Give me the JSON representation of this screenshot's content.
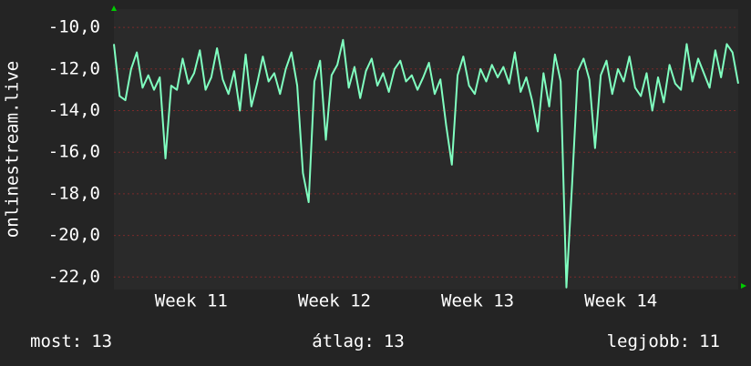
{
  "chart_data": {
    "type": "line",
    "y_label": "onlinestream.live",
    "x": [
      10.96,
      11,
      11.04,
      11.08,
      11.12,
      11.16,
      11.2,
      11.24,
      11.28,
      11.32,
      11.36,
      11.4,
      11.44,
      11.48,
      11.52,
      11.56,
      11.6,
      11.64,
      11.68,
      11.72,
      11.76,
      11.8,
      11.84,
      11.88,
      11.92,
      11.96,
      12,
      12.04,
      12.08,
      12.12,
      12.16,
      12.2,
      12.24,
      12.28,
      12.32,
      12.36,
      12.4,
      12.44,
      12.48,
      12.52,
      12.56,
      12.6,
      12.64,
      12.68,
      12.72,
      12.76,
      12.8,
      12.84,
      12.88,
      12.92,
      12.96,
      13,
      13.04,
      13.08,
      13.12,
      13.16,
      13.2,
      13.24,
      13.28,
      13.32,
      13.36,
      13.4,
      13.44,
      13.48,
      13.52,
      13.56,
      13.6,
      13.64,
      13.68,
      13.72,
      13.76,
      13.8,
      13.84,
      13.88,
      13.92,
      13.96,
      14,
      14.04,
      14.08,
      14.12,
      14.16,
      14.2,
      14.24,
      14.28,
      14.32,
      14.36,
      14.4,
      14.44,
      14.48,
      14.52,
      14.56,
      14.6,
      14.64,
      14.68,
      14.72,
      14.76,
      14.8,
      14.84,
      14.88,
      14.92,
      14.96,
      15,
      15.04,
      15.08,
      15.12,
      15.16,
      15.2,
      15.24,
      15.28,
      15.32
    ],
    "series": [
      {
        "color": "#80ffc0",
        "values": [
          -10.8,
          -13.3,
          -13.5,
          -12.0,
          -11.2,
          -12.9,
          -12.3,
          -13.0,
          -12.4,
          -16.3,
          -12.8,
          -13.0,
          -11.5,
          -12.7,
          -12.2,
          -11.1,
          -13.0,
          -12.4,
          -11.0,
          -12.5,
          -13.2,
          -12.1,
          -14.0,
          -11.3,
          -13.8,
          -12.7,
          -11.4,
          -12.6,
          -12.2,
          -13.2,
          -12.0,
          -11.2,
          -12.8,
          -17.0,
          -18.4,
          -12.6,
          -11.6,
          -15.4,
          -12.3,
          -11.8,
          -10.6,
          -12.9,
          -11.9,
          -13.4,
          -12.1,
          -11.5,
          -12.8,
          -12.2,
          -13.1,
          -12.0,
          -11.6,
          -12.6,
          -12.3,
          -13.0,
          -12.4,
          -11.7,
          -13.2,
          -12.5,
          -14.7,
          -16.6,
          -12.3,
          -11.4,
          -12.8,
          -13.2,
          -12.0,
          -12.6,
          -11.8,
          -12.4,
          -11.9,
          -12.7,
          -11.2,
          -13.1,
          -12.4,
          -13.5,
          -15.0,
          -12.2,
          -13.8,
          -11.3,
          -12.6,
          -22.5,
          -17.5,
          -12.1,
          -11.5,
          -12.5,
          -15.8,
          -12.3,
          -11.6,
          -13.2,
          -12.0,
          -12.6,
          -11.4,
          -12.9,
          -13.3,
          -12.2,
          -14.0,
          -12.4,
          -13.6,
          -11.8,
          -12.7,
          -13.0,
          -10.8,
          -12.6,
          -11.5,
          -12.2,
          -12.9,
          -11.1,
          -12.4,
          -10.8,
          -11.2,
          -12.7
        ]
      }
    ],
    "xlim": [
      10.96,
      15.32
    ],
    "xticks": [
      {
        "value": 11.5,
        "label": "Week 11"
      },
      {
        "value": 12.5,
        "label": "Week 12"
      },
      {
        "value": 13.5,
        "label": "Week 13"
      },
      {
        "value": 14.5,
        "label": "Week 14"
      }
    ],
    "ylim": [
      -22.6,
      -9.12
    ],
    "yticks": [
      {
        "value": -10,
        "label": "-10,0"
      },
      {
        "value": -12,
        "label": "-12,0"
      },
      {
        "value": -14,
        "label": "-14,0"
      },
      {
        "value": -16,
        "label": "-16,0"
      },
      {
        "value": -18,
        "label": "-18,0"
      },
      {
        "value": -20,
        "label": "-20,0"
      },
      {
        "value": -22,
        "label": "-22,0"
      }
    ],
    "grid": true,
    "stats": [
      {
        "label": "most:",
        "value": 13
      },
      {
        "label": "átlag:",
        "value": 13
      },
      {
        "label": "legjobb:",
        "value": 11
      }
    ]
  }
}
